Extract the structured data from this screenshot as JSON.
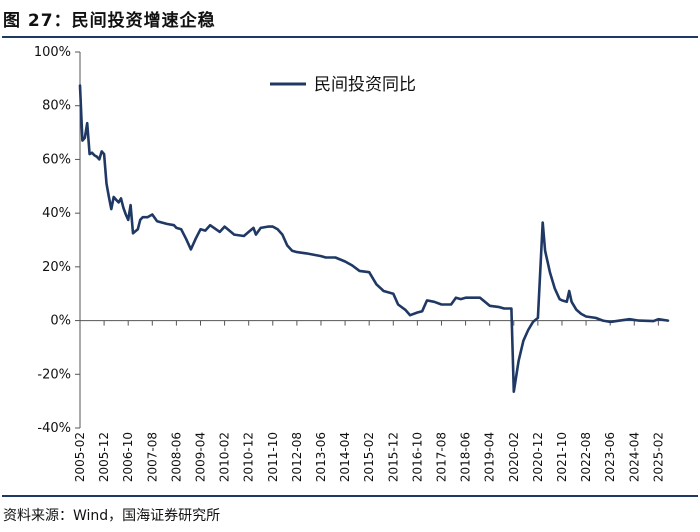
{
  "header": {
    "title": "图 27：民间投资增速企稳"
  },
  "footer": {
    "source": "资料来源：Wind，国海证券研究所"
  },
  "colors": {
    "series": "#1f3864",
    "rule": "#1f3864"
  },
  "chart_data": {
    "type": "line",
    "title": "",
    "xlabel": "",
    "ylabel": "",
    "y_unit": "%",
    "ylim": [
      -40,
      100
    ],
    "y_ticks": [
      -40,
      -20,
      0,
      20,
      40,
      60,
      80,
      100
    ],
    "y_tick_labels": [
      "-40%",
      "-20%",
      "0%",
      "20%",
      "40%",
      "60%",
      "80%",
      "100%"
    ],
    "x_range": [
      "2005-02",
      "2025-06"
    ],
    "x_tick_labels": [
      "2005-02",
      "2005-12",
      "2006-10",
      "2007-08",
      "2008-06",
      "2009-04",
      "2010-02",
      "2010-12",
      "2011-10",
      "2012-08",
      "2013-06",
      "2014-04",
      "2015-02",
      "2015-12",
      "2016-10",
      "2017-08",
      "2018-06",
      "2019-04",
      "2020-02",
      "2020-12",
      "2021-10",
      "2022-08",
      "2023-06",
      "2024-04",
      "2025-02"
    ],
    "grid": false,
    "legend": {
      "position": "top-center"
    },
    "series": [
      {
        "name": "民间投资同比",
        "color": "#1f3864",
        "points": [
          [
            "2005-02",
            87.5
          ],
          [
            "2005-03",
            67
          ],
          [
            "2005-04",
            68
          ],
          [
            "2005-05",
            73.5
          ],
          [
            "2005-06",
            62
          ],
          [
            "2005-07",
            62.5
          ],
          [
            "2005-08",
            61.5
          ],
          [
            "2005-09",
            61
          ],
          [
            "2005-10",
            60
          ],
          [
            "2005-11",
            63
          ],
          [
            "2005-12",
            62
          ],
          [
            "2006-01",
            51
          ],
          [
            "2006-02",
            46
          ],
          [
            "2006-03",
            41.5
          ],
          [
            "2006-04",
            46
          ],
          [
            "2006-05",
            45
          ],
          [
            "2006-06",
            44
          ],
          [
            "2006-07",
            45.5
          ],
          [
            "2006-08",
            42
          ],
          [
            "2006-09",
            39.5
          ],
          [
            "2006-10",
            37.5
          ],
          [
            "2006-11",
            43
          ],
          [
            "2006-12",
            32.5
          ],
          [
            "2007-02",
            34
          ],
          [
            "2007-03",
            37.5
          ],
          [
            "2007-04",
            38.5
          ],
          [
            "2007-06",
            38.5
          ],
          [
            "2007-08",
            39.5
          ],
          [
            "2007-10",
            37
          ],
          [
            "2008-02",
            36
          ],
          [
            "2008-05",
            35.5
          ],
          [
            "2008-06",
            34.5
          ],
          [
            "2008-08",
            34
          ],
          [
            "2008-10",
            30.5
          ],
          [
            "2008-12",
            26.5
          ],
          [
            "2009-02",
            30.5
          ],
          [
            "2009-04",
            34
          ],
          [
            "2009-06",
            33.5
          ],
          [
            "2009-08",
            35.5
          ],
          [
            "2009-12",
            33
          ],
          [
            "2010-02",
            35
          ],
          [
            "2010-06",
            32
          ],
          [
            "2010-10",
            31.5
          ],
          [
            "2010-12",
            33
          ],
          [
            "2011-02",
            34.5
          ],
          [
            "2011-03",
            32
          ],
          [
            "2011-05",
            34.5
          ],
          [
            "2011-08",
            35
          ],
          [
            "2011-10",
            35
          ],
          [
            "2011-12",
            34
          ],
          [
            "2012-02",
            32
          ],
          [
            "2012-04",
            28
          ],
          [
            "2012-06",
            26
          ],
          [
            "2012-08",
            25.5
          ],
          [
            "2012-12",
            25
          ],
          [
            "2013-06",
            24
          ],
          [
            "2013-08",
            23.5
          ],
          [
            "2013-12",
            23.5
          ],
          [
            "2014-04",
            22
          ],
          [
            "2014-07",
            20.5
          ],
          [
            "2014-10",
            18.5
          ],
          [
            "2015-02",
            18
          ],
          [
            "2015-05",
            13.5
          ],
          [
            "2015-08",
            11
          ],
          [
            "2015-12",
            10
          ],
          [
            "2016-02",
            6
          ],
          [
            "2016-05",
            4
          ],
          [
            "2016-07",
            2
          ],
          [
            "2016-10",
            3
          ],
          [
            "2016-12",
            3.5
          ],
          [
            "2017-02",
            7.5
          ],
          [
            "2017-05",
            7
          ],
          [
            "2017-08",
            6
          ],
          [
            "2017-12",
            6
          ],
          [
            "2018-02",
            8.5
          ],
          [
            "2018-04",
            8
          ],
          [
            "2018-06",
            8.5
          ],
          [
            "2018-08",
            8.5
          ],
          [
            "2018-12",
            8.5
          ],
          [
            "2019-02",
            7
          ],
          [
            "2019-04",
            5.5
          ],
          [
            "2019-08",
            5
          ],
          [
            "2019-10",
            4.5
          ],
          [
            "2019-12",
            4.5
          ],
          [
            "2020-01",
            4.5
          ],
          [
            "2020-02",
            -26.5
          ],
          [
            "2020-04",
            -15
          ],
          [
            "2020-06",
            -7.5
          ],
          [
            "2020-08",
            -3.5
          ],
          [
            "2020-10",
            -0.5
          ],
          [
            "2020-12",
            1
          ],
          [
            "2021-02",
            36.5
          ],
          [
            "2021-03",
            26
          ],
          [
            "2021-05",
            18
          ],
          [
            "2021-07",
            12
          ],
          [
            "2021-09",
            8
          ],
          [
            "2021-10",
            7.5
          ],
          [
            "2021-12",
            7
          ],
          [
            "2022-01",
            11
          ],
          [
            "2022-02",
            7
          ],
          [
            "2022-04",
            4
          ],
          [
            "2022-06",
            2.5
          ],
          [
            "2022-08",
            1.5
          ],
          [
            "2022-12",
            1
          ],
          [
            "2023-03",
            0
          ],
          [
            "2023-06",
            -0.5
          ],
          [
            "2023-10",
            0
          ],
          [
            "2024-02",
            0.5
          ],
          [
            "2024-06",
            0
          ],
          [
            "2024-12",
            -0.2
          ],
          [
            "2025-02",
            0.5
          ],
          [
            "2025-06",
            0
          ]
        ]
      }
    ]
  }
}
